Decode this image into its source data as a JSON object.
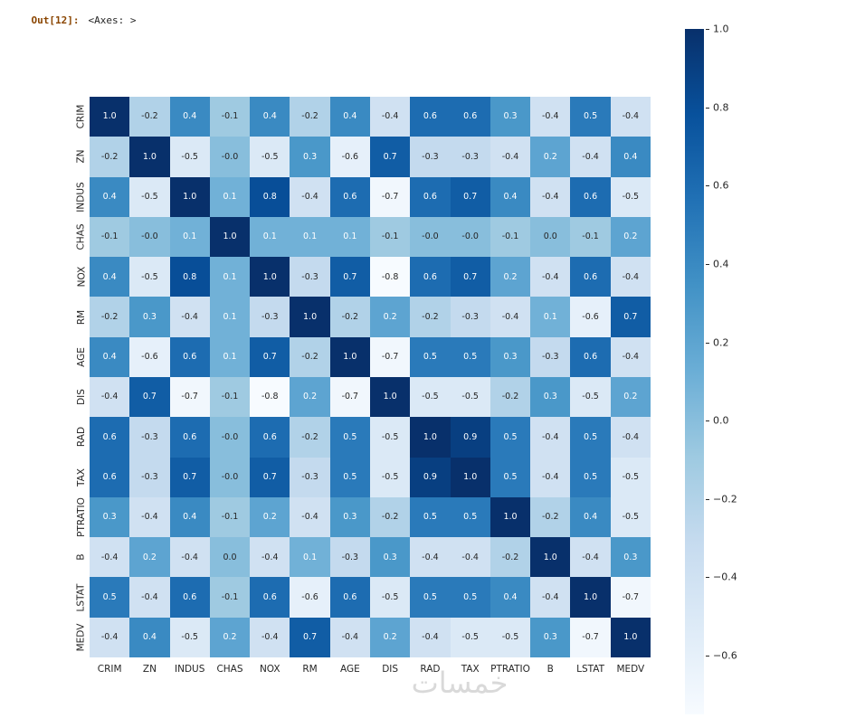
{
  "console": {
    "prompt": "Out[12]:",
    "value": "<Axes: >"
  },
  "watermark": {
    "text": "خمسات"
  },
  "colors": {
    "out_prompt": "#8a4500",
    "out_value": "#262626",
    "dark_text": "#262626",
    "light_text": "#ffffff",
    "watermark": "#d9d9d9",
    "blues_stops": [
      "#f7fbff",
      "#deebf7",
      "#c6dbef",
      "#9ecae1",
      "#6baed6",
      "#4292c6",
      "#2171b5",
      "#08519c",
      "#08306b"
    ]
  },
  "chart_data": {
    "type": "heatmap",
    "title": "",
    "xlabel": "",
    "ylabel": "",
    "colormap": "Blues",
    "annotations": true,
    "grid": false,
    "legend_position": "right-colorbar",
    "vmin": -0.75,
    "vmax": 1.0,
    "colorbar_ticks": [
      1.0,
      0.8,
      0.6,
      0.4,
      0.2,
      0.0,
      -0.2,
      -0.4,
      -0.6
    ],
    "labels": [
      "CRIM",
      "ZN",
      "INDUS",
      "CHAS",
      "NOX",
      "RM",
      "AGE",
      "DIS",
      "RAD",
      "TAX",
      "PTRATIO",
      "B",
      "LSTAT",
      "MEDV"
    ],
    "matrix": [
      [
        "1.0",
        "-0.2",
        "0.4",
        "-0.1",
        "0.4",
        "-0.2",
        "0.4",
        "-0.4",
        "0.6",
        "0.6",
        "0.3",
        "-0.4",
        "0.5",
        "-0.4"
      ],
      [
        "-0.2",
        "1.0",
        "-0.5",
        "-0.0",
        "-0.5",
        "0.3",
        "-0.6",
        "0.7",
        "-0.3",
        "-0.3",
        "-0.4",
        "0.2",
        "-0.4",
        "0.4"
      ],
      [
        "0.4",
        "-0.5",
        "1.0",
        "0.1",
        "0.8",
        "-0.4",
        "0.6",
        "-0.7",
        "0.6",
        "0.7",
        "0.4",
        "-0.4",
        "0.6",
        "-0.5"
      ],
      [
        "-0.1",
        "-0.0",
        "0.1",
        "1.0",
        "0.1",
        "0.1",
        "0.1",
        "-0.1",
        "-0.0",
        "-0.0",
        "-0.1",
        "0.0",
        "-0.1",
        "0.2"
      ],
      [
        "0.4",
        "-0.5",
        "0.8",
        "0.1",
        "1.0",
        "-0.3",
        "0.7",
        "-0.8",
        "0.6",
        "0.7",
        "0.2",
        "-0.4",
        "0.6",
        "-0.4"
      ],
      [
        "-0.2",
        "0.3",
        "-0.4",
        "0.1",
        "-0.3",
        "1.0",
        "-0.2",
        "0.2",
        "-0.2",
        "-0.3",
        "-0.4",
        "0.1",
        "-0.6",
        "0.7"
      ],
      [
        "0.4",
        "-0.6",
        "0.6",
        "0.1",
        "0.7",
        "-0.2",
        "1.0",
        "-0.7",
        "0.5",
        "0.5",
        "0.3",
        "-0.3",
        "0.6",
        "-0.4"
      ],
      [
        "-0.4",
        "0.7",
        "-0.7",
        "-0.1",
        "-0.8",
        "0.2",
        "-0.7",
        "1.0",
        "-0.5",
        "-0.5",
        "-0.2",
        "0.3",
        "-0.5",
        "0.2"
      ],
      [
        "0.6",
        "-0.3",
        "0.6",
        "-0.0",
        "0.6",
        "-0.2",
        "0.5",
        "-0.5",
        "1.0",
        "0.9",
        "0.5",
        "-0.4",
        "0.5",
        "-0.4"
      ],
      [
        "0.6",
        "-0.3",
        "0.7",
        "-0.0",
        "0.7",
        "-0.3",
        "0.5",
        "-0.5",
        "0.9",
        "1.0",
        "0.5",
        "-0.4",
        "0.5",
        "-0.5"
      ],
      [
        "0.3",
        "-0.4",
        "0.4",
        "-0.1",
        "0.2",
        "-0.4",
        "0.3",
        "-0.2",
        "0.5",
        "0.5",
        "1.0",
        "-0.2",
        "0.4",
        "-0.5"
      ],
      [
        "-0.4",
        "0.2",
        "-0.4",
        "0.0",
        "-0.4",
        "0.1",
        "-0.3",
        "0.3",
        "-0.4",
        "-0.4",
        "-0.2",
        "1.0",
        "-0.4",
        "0.3"
      ],
      [
        "0.5",
        "-0.4",
        "0.6",
        "-0.1",
        "0.6",
        "-0.6",
        "0.6",
        "-0.5",
        "0.5",
        "0.5",
        "0.4",
        "-0.4",
        "1.0",
        "-0.7"
      ],
      [
        "-0.4",
        "0.4",
        "-0.5",
        "0.2",
        "-0.4",
        "0.7",
        "-0.4",
        "0.2",
        "-0.4",
        "-0.5",
        "-0.5",
        "0.3",
        "-0.7",
        "1.0"
      ]
    ]
  }
}
